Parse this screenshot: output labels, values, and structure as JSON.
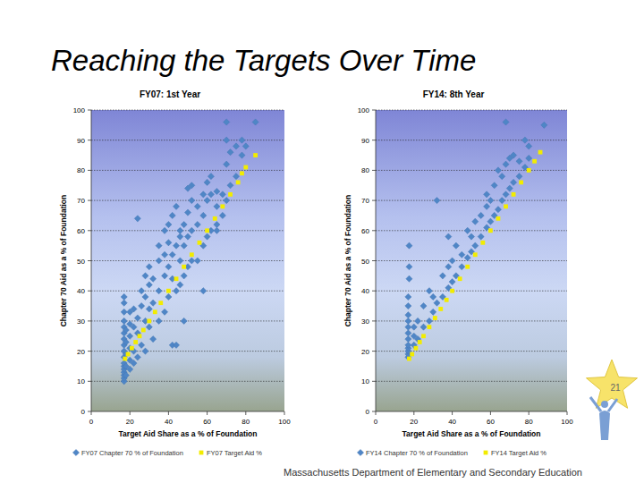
{
  "slide": {
    "title": "Reaching the Targets Over Time",
    "footer": "Massachusetts Department of Elementary and Secondary Education",
    "page_number": 21
  },
  "chart_data": [
    {
      "type": "scatter",
      "title": "FY07: 1st Year",
      "x_label": "Target Aid Share as a % of Foundation",
      "y_label": "Chapter 70 Aid as a % of Foundation",
      "xlim": [
        0,
        100
      ],
      "xticks": [
        0,
        20,
        40,
        60,
        80,
        100
      ],
      "ylim": [
        0,
        100
      ],
      "yticks": [
        0,
        10,
        20,
        30,
        40,
        50,
        60,
        70,
        80,
        90,
        100
      ],
      "grid": true,
      "legend": "bottom",
      "series": [
        {
          "name": "FY07 Chapter 70 % of Foundation",
          "color": "#4f86c6",
          "marker": "diamond",
          "x": [
            17,
            17,
            17,
            17,
            17,
            17,
            17,
            17,
            17,
            17,
            17,
            17,
            17,
            17,
            17,
            17,
            17,
            18,
            18,
            18,
            18,
            18,
            20,
            20,
            20,
            20,
            20,
            20,
            22,
            22,
            22,
            22,
            24,
            24,
            24,
            24,
            26,
            26,
            26,
            28,
            28,
            28,
            28,
            30,
            30,
            30,
            30,
            32,
            32,
            32,
            35,
            35,
            35,
            35,
            38,
            38,
            38,
            38,
            40,
            40,
            40,
            40,
            42,
            42,
            42,
            42,
            44,
            44,
            44,
            44,
            46,
            46,
            46,
            46,
            48,
            48,
            48,
            48,
            50,
            50,
            50,
            50,
            52,
            52,
            52,
            52,
            55,
            55,
            55,
            58,
            58,
            58,
            58,
            60,
            60,
            60,
            62,
            62,
            62,
            65,
            65,
            65,
            65,
            68,
            68,
            70,
            70,
            70,
            70,
            72,
            72,
            75,
            75,
            78,
            78,
            80,
            85
          ],
          "values": [
            10,
            11,
            12,
            13,
            14,
            15,
            16,
            18,
            20,
            22,
            24,
            26,
            28,
            30,
            33,
            36,
            38,
            12,
            15,
            19,
            23,
            27,
            14,
            17,
            21,
            25,
            29,
            33,
            16,
            20,
            28,
            34,
            64,
            18,
            26,
            31,
            22,
            35,
            40,
            20,
            30,
            38,
            45,
            28,
            34,
            42,
            48,
            24,
            36,
            44,
            30,
            40,
            50,
            55,
            33,
            45,
            52,
            60,
            38,
            48,
            56,
            62,
            22,
            44,
            52,
            65,
            22,
            40,
            55,
            68,
            42,
            50,
            58,
            60,
            30,
            45,
            55,
            62,
            48,
            58,
            66,
            74,
            50,
            60,
            70,
            75,
            50,
            62,
            68,
            40,
            55,
            65,
            72,
            58,
            70,
            76,
            60,
            72,
            78,
            60,
            62,
            68,
            73,
            65,
            72,
            70,
            82,
            90,
            96,
            75,
            86,
            78,
            88,
            85,
            90,
            88,
            96
          ]
        },
        {
          "name": "FY07 Target Aid %",
          "color": "#f2ec00",
          "marker": "square",
          "x": [
            17.5,
            19,
            21,
            23,
            25,
            27,
            30,
            33,
            36,
            40,
            44,
            48,
            52,
            56,
            60,
            64,
            68,
            72,
            76,
            78,
            80,
            85
          ],
          "values": [
            17.5,
            19,
            21,
            23,
            25,
            27,
            30,
            33,
            36,
            40,
            44,
            48,
            52,
            56,
            60,
            64,
            68,
            72,
            76,
            79,
            81,
            85
          ]
        }
      ]
    },
    {
      "type": "scatter",
      "title": "FY14: 8th Year",
      "x_label": "Target Aid Share as a % of Foundation",
      "y_label": "Chapter 70 Aid as a % of Foundation",
      "xlim": [
        0,
        100
      ],
      "xticks": [
        0,
        20,
        40,
        60,
        80,
        100
      ],
      "ylim": [
        0,
        100
      ],
      "yticks": [
        0,
        10,
        20,
        30,
        40,
        50,
        60,
        70,
        80,
        90,
        100
      ],
      "grid": true,
      "legend": "bottom",
      "series": [
        {
          "name": "FY14 Chapter 70 % of Foundation",
          "color": "#4f86c6",
          "marker": "diamond",
          "x": [
            17,
            17,
            17,
            17,
            17,
            17,
            17,
            17,
            17,
            17,
            17,
            17,
            17.5,
            17.5,
            17.5,
            20,
            20,
            20,
            22,
            22,
            25,
            25,
            28,
            28,
            30,
            30,
            32,
            32,
            35,
            35,
            38,
            38,
            38,
            40,
            40,
            42,
            42,
            45,
            45,
            48,
            48,
            50,
            50,
            52,
            52,
            55,
            55,
            58,
            58,
            58,
            60,
            60,
            62,
            62,
            64,
            64,
            66,
            66,
            68,
            68,
            68,
            70,
            70,
            72,
            72,
            75,
            75,
            78,
            78,
            80,
            80,
            88
          ],
          "values": [
            18,
            19,
            20,
            21,
            22,
            24,
            26,
            28,
            30,
            32,
            35,
            38,
            44,
            48,
            55,
            22,
            25,
            28,
            24,
            30,
            28,
            35,
            30,
            40,
            33,
            38,
            36,
            70,
            38,
            45,
            41,
            48,
            58,
            43,
            50,
            45,
            55,
            48,
            52,
            51,
            60,
            53,
            58,
            55,
            63,
            58,
            65,
            61,
            68,
            72,
            63,
            70,
            65,
            75,
            67,
            80,
            70,
            78,
            72,
            82,
            96,
            74,
            84,
            76,
            85,
            78,
            83,
            81,
            90,
            84,
            88,
            95
          ]
        },
        {
          "name": "FY14 Target Aid %",
          "color": "#f2ec00",
          "marker": "square",
          "x": [
            17.5,
            19,
            21,
            23,
            25,
            28,
            31,
            34,
            37,
            40,
            44,
            48,
            52,
            56,
            60,
            64,
            68,
            72,
            76,
            80,
            83,
            86
          ],
          "values": [
            17.5,
            19,
            21,
            23,
            25,
            28,
            31,
            34,
            37,
            40,
            44,
            48,
            52,
            56,
            60,
            64,
            68,
            72,
            76,
            80,
            83,
            86
          ]
        }
      ]
    }
  ]
}
